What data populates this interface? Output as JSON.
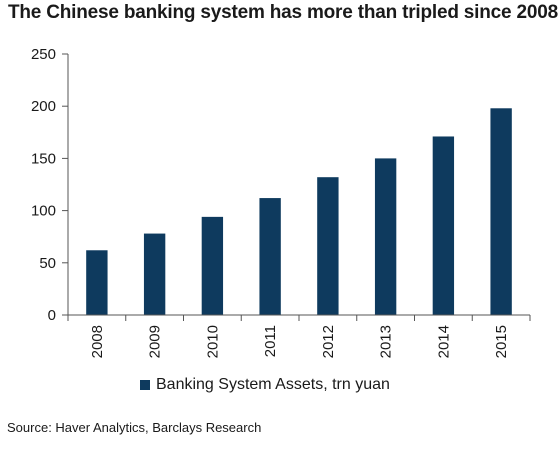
{
  "chart_data": {
    "type": "bar",
    "title": "The Chinese banking system has more than tripled since 2008",
    "categories": [
      "2008",
      "2009",
      "2010",
      "2011",
      "2012",
      "2013",
      "2014",
      "2015"
    ],
    "series": [
      {
        "name": "Banking System Assets, trn yuan",
        "values": [
          62,
          78,
          94,
          112,
          132,
          150,
          171,
          198
        ]
      }
    ],
    "xlabel": "",
    "ylabel": "",
    "ylim": [
      0,
      250
    ],
    "yticks": [
      "0",
      "50",
      "100",
      "150",
      "200",
      "250"
    ],
    "grid": false,
    "legend_position": "bottom",
    "bar_color": "#0e3a5e",
    "source": "Source:  Haver Analytics, Barclays Research"
  }
}
